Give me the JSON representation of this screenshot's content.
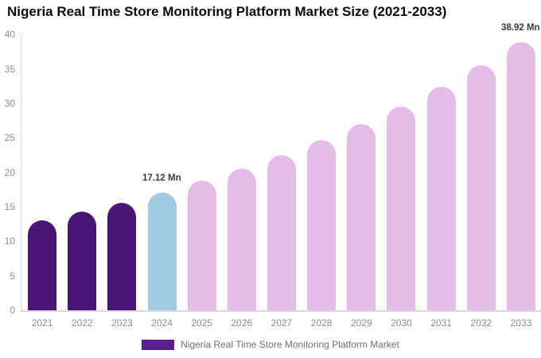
{
  "page": {
    "background": "#ffffff"
  },
  "chart_data": {
    "type": "bar",
    "title": "Nigeria Real Time Store Monitoring Platform Market Size (2021-2033)",
    "categories": [
      "2021",
      "2022",
      "2023",
      "2024",
      "2025",
      "2026",
      "2027",
      "2028",
      "2029",
      "2030",
      "2031",
      "2032",
      "2033"
    ],
    "values": [
      13.02,
      14.26,
      15.63,
      17.12,
      18.76,
      20.55,
      22.51,
      24.66,
      27.02,
      29.6,
      32.43,
      35.53,
      38.92
    ],
    "unit": "Mn",
    "bar_colors": [
      "#4B1478",
      "#4B1478",
      "#4B1478",
      "#A1CBE2",
      "#E4BCE8",
      "#E4BCE8",
      "#E4BCE8",
      "#E4BCE8",
      "#E4BCE8",
      "#E4BCE8",
      "#E4BCE8",
      "#E4BCE8",
      "#E4BCE8"
    ],
    "annotations": [
      {
        "category": "2024",
        "text": "17.12 Mn"
      },
      {
        "category": "2033",
        "text": "38.92 Mn"
      }
    ],
    "xlabel": "",
    "ylabel": "",
    "ylim": [
      0,
      40
    ],
    "yticks": [
      0,
      5,
      10,
      15,
      20,
      25,
      30,
      35,
      40
    ],
    "grid": false,
    "legend": {
      "label": "Nigeria Real Time Store Monitoring Platform Market",
      "swatch_color": "#5B1D90",
      "position": "bottom"
    },
    "colors": {
      "axis_line": "#d9d9d9",
      "tick_text": "#8c8c8c",
      "annotation_text": "#3a3a3a",
      "title_text": "#0b0b0b",
      "legend_text": "#6e6e6e"
    }
  }
}
